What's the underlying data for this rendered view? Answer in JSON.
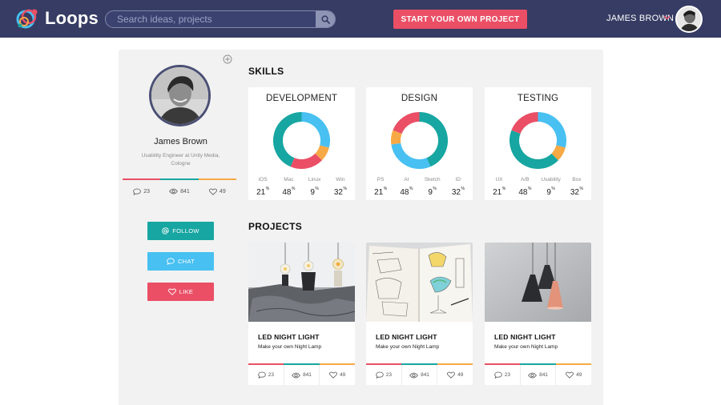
{
  "app": {
    "name": "Loops"
  },
  "colors": {
    "nav": "#363c63",
    "red": "#ea4f66",
    "teal": "#17a6a1",
    "blue": "#48c0f2",
    "orange": "#f6a945"
  },
  "search": {
    "placeholder": "Search ideas, projects"
  },
  "header": {
    "cta_label": "START YOUR OWN PROJECT",
    "user_name": "JAMES BROWN"
  },
  "profile": {
    "name": "James Brown",
    "role": "Usability Engineer at Unity Media, Cologne",
    "stats": {
      "comments": "23",
      "views": "841",
      "likes": "49"
    }
  },
  "actions": {
    "follow": "FOLLOW",
    "chat": "CHAT",
    "like": "LIKE"
  },
  "sections": {
    "skills": "SKILLS",
    "projects": "PROJECTS"
  },
  "skills": [
    {
      "title": "DEVELOPMENT",
      "unit": "%",
      "items": [
        {
          "label": "iOS",
          "value": "21",
          "color": "#ea4f66"
        },
        {
          "label": "Mac",
          "value": "48",
          "color": "#17a6a1"
        },
        {
          "label": "Linux",
          "value": "9",
          "color": "#f6a945"
        },
        {
          "label": "Win",
          "value": "32",
          "color": "#48c0f2"
        }
      ],
      "order": [
        3,
        2,
        0,
        1
      ]
    },
    {
      "title": "DESIGN",
      "unit": "%",
      "items": [
        {
          "label": "PS",
          "value": "21",
          "color": "#ea4f66"
        },
        {
          "label": "AI",
          "value": "48",
          "color": "#17a6a1"
        },
        {
          "label": "Sketch",
          "value": "9",
          "color": "#f6a945"
        },
        {
          "label": "ID",
          "value": "32",
          "color": "#48c0f2"
        }
      ],
      "order": [
        1,
        3,
        2,
        0
      ]
    },
    {
      "title": "TESTING",
      "unit": "%",
      "items": [
        {
          "label": "UX",
          "value": "21",
          "color": "#ea4f66"
        },
        {
          "label": "A/B",
          "value": "48",
          "color": "#17a6a1"
        },
        {
          "label": "Usability",
          "value": "9",
          "color": "#f6a945"
        },
        {
          "label": "Box",
          "value": "32",
          "color": "#48c0f2"
        }
      ],
      "order": [
        3,
        2,
        1,
        0
      ]
    }
  ],
  "projects": [
    {
      "title": "LED NIGHT LIGHT",
      "subtitle": "Make your own Night Lamp",
      "image": "bulbs-photo",
      "comments": "23",
      "views": "841",
      "likes": "49"
    },
    {
      "title": "LED NIGHT LIGHT",
      "subtitle": "Make your own Night Lamp",
      "image": "sketchbook-photo",
      "comments": "23",
      "views": "841",
      "likes": "49"
    },
    {
      "title": "LED NIGHT LIGHT",
      "subtitle": "Make your own Night Lamp",
      "image": "pendant-lamps-photo",
      "comments": "23",
      "views": "841",
      "likes": "49"
    }
  ]
}
